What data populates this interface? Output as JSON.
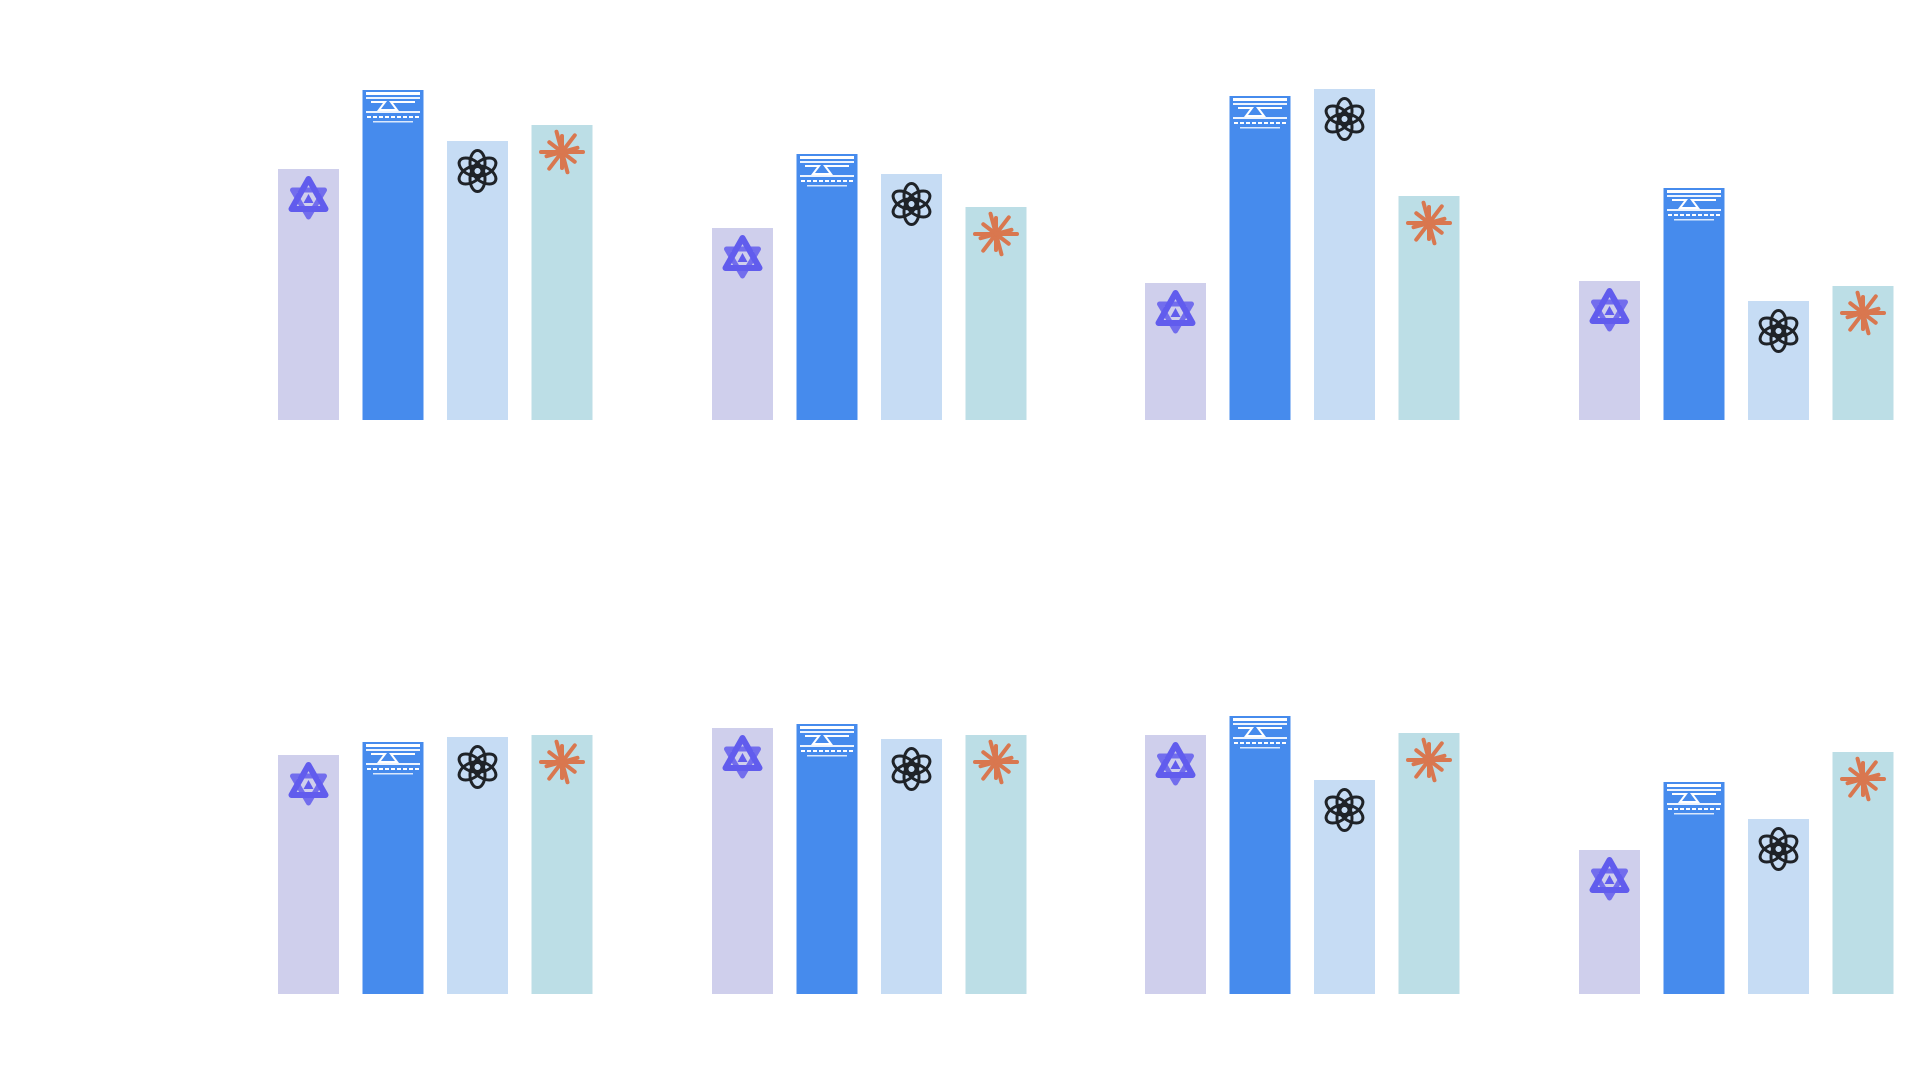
{
  "palette": {
    "qwen": "#cfcfec",
    "deepseek": "#468bed",
    "openai": "#c6dcf4",
    "claude": "#bcdee6",
    "qwen_logo": "#615ced",
    "deepseek_logo": "#ffffff",
    "openai_logo": "#1f2328",
    "claude_logo": "#d9774f",
    "background": "#ffffff"
  },
  "icons": {
    "qwen": "qwen-logo-icon",
    "deepseek": "deepseek-logo-icon",
    "openai": "openai-logo-icon",
    "claude": "claude-logo-icon"
  },
  "chart_data": [
    {
      "type": "bar",
      "categories": [
        "qwen",
        "deepseek",
        "openai",
        "claude"
      ],
      "values": [
        251,
        330,
        279,
        295
      ],
      "ylim": [
        0,
        360
      ],
      "grid": false
    },
    {
      "type": "bar",
      "categories": [
        "qwen",
        "deepseek",
        "openai",
        "claude"
      ],
      "values": [
        192,
        266,
        246,
        213
      ],
      "ylim": [
        0,
        360
      ],
      "grid": false
    },
    {
      "type": "bar",
      "categories": [
        "qwen",
        "deepseek",
        "openai",
        "claude"
      ],
      "values": [
        137,
        324,
        331,
        224
      ],
      "ylim": [
        0,
        360
      ],
      "grid": false
    },
    {
      "type": "bar",
      "categories": [
        "qwen",
        "deepseek",
        "openai",
        "claude"
      ],
      "values": [
        139,
        232,
        119,
        134
      ],
      "ylim": [
        0,
        360
      ],
      "grid": false
    },
    {
      "type": "bar",
      "categories": [
        "qwen",
        "deepseek",
        "openai",
        "claude"
      ],
      "values": [
        239,
        252,
        257,
        259
      ],
      "ylim": [
        0,
        360
      ],
      "grid": false
    },
    {
      "type": "bar",
      "categories": [
        "qwen",
        "deepseek",
        "openai",
        "claude"
      ],
      "values": [
        266,
        270,
        255,
        259
      ],
      "ylim": [
        0,
        360
      ],
      "grid": false
    },
    {
      "type": "bar",
      "categories": [
        "qwen",
        "deepseek",
        "openai",
        "claude"
      ],
      "values": [
        259,
        278,
        214,
        261
      ],
      "ylim": [
        0,
        360
      ],
      "grid": false
    },
    {
      "type": "bar",
      "categories": [
        "qwen",
        "deepseek",
        "openai",
        "claude"
      ],
      "values": [
        144,
        212,
        175,
        242
      ],
      "ylim": [
        0,
        360
      ],
      "grid": false
    }
  ]
}
